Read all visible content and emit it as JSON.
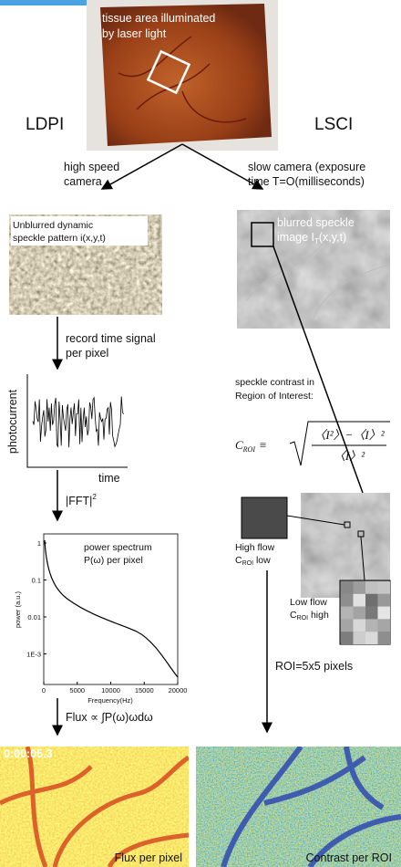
{
  "header": {
    "caption": [
      "tissue area illuminated",
      "by laser light"
    ]
  },
  "methods": {
    "left": "LDPI",
    "right": "LSCI"
  },
  "left": {
    "camera": [
      "high speed",
      "camera"
    ],
    "speckle_label": [
      "Unblurred dynamic",
      "speckle pattern i(x,y,t)"
    ],
    "step1": [
      "record time signal",
      "per pixel"
    ],
    "signal_ylabel": "photocurrent",
    "signal_xlabel": "time",
    "step2": "|FFT|",
    "step2_exp": "2",
    "spectrum": {
      "title": [
        "power spectrum",
        "P(ω) per pixel"
      ],
      "ylabel": "power (a.u.)",
      "xlabel": "Frequency(Hz)",
      "yticks": [
        "1",
        "0.1",
        "0.01",
        "1E-3"
      ],
      "xticks": [
        "0",
        "5000",
        "10000",
        "15000",
        "20000"
      ]
    },
    "step3": "Flux ∝ ∫P(ω)ωdω",
    "timestamp": "0:00:05.3",
    "result": "Flux per pixel"
  },
  "right": {
    "camera": [
      "slow camera (exposure",
      "time T=O(milliseconds)"
    ],
    "speckle_label": [
      "blurred speckle",
      "image I"
    ],
    "speckle_sub": "T",
    "speckle_suffix": "(x,y,t)",
    "contrast_intro": [
      "speckle contrast  in",
      "Region of Interest:"
    ],
    "formula": {
      "lhs": "C",
      "lhs_sub": "ROI",
      "op": "≡",
      "numerator": "〈I²〉−〈I〉²",
      "denominator": "〈I〉²"
    },
    "high": {
      "line1": "High flow",
      "c": "C",
      "sub": "ROI",
      "tail": " low"
    },
    "low": {
      "line1": "Low flow",
      "c": "C",
      "sub": "ROI",
      "tail": " high"
    },
    "roi": "ROI=5x5 pixels",
    "result": "Contrast per ROI"
  }
}
